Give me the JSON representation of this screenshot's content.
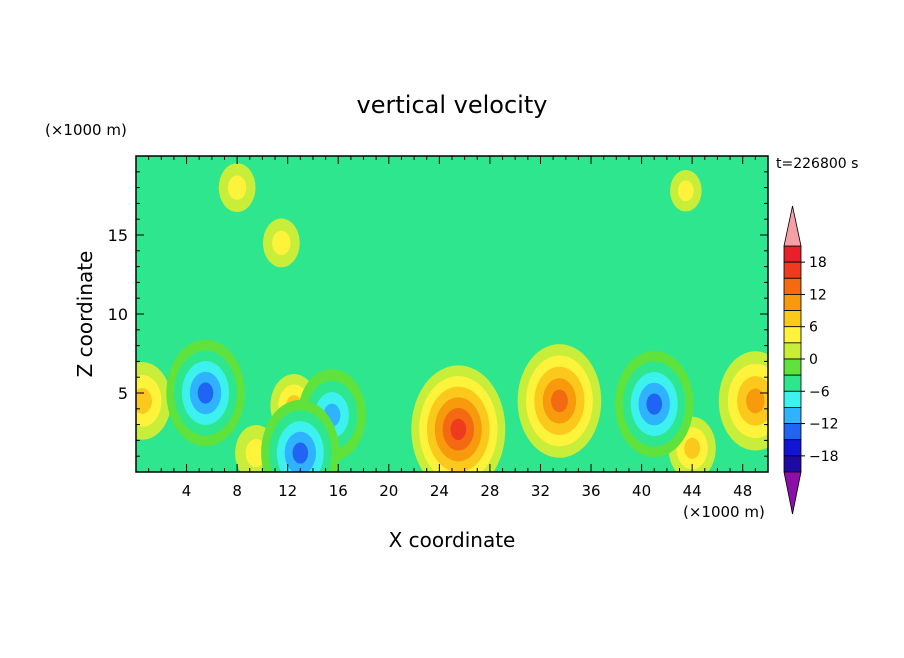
{
  "chart_data": {
    "type": "heatmap",
    "title": "vertical velocity",
    "time_label": "t=226800 s",
    "xlabel": "X coordinate",
    "ylabel": "Z coordinate",
    "x_unit": "(×1000 m)",
    "y_unit": "(×1000 m)",
    "xlim": [
      0,
      50
    ],
    "ylim": [
      0,
      20
    ],
    "x_ticks": [
      "4",
      "8",
      "12",
      "16",
      "20",
      "24",
      "28",
      "32",
      "36",
      "40",
      "44",
      "48"
    ],
    "y_ticks": [
      "5",
      "10",
      "15"
    ],
    "colorbar": {
      "tick_labels": [
        "18",
        "12",
        "6",
        "0",
        "−6",
        "−12",
        "−18"
      ],
      "levels": [
        18,
        15,
        12,
        9,
        6,
        3,
        0,
        -3,
        -6,
        -9,
        -12,
        -15,
        -18
      ],
      "colors": [
        "#e8202a",
        "#ef3a20",
        "#f46a12",
        "#f79a0c",
        "#fbc81c",
        "#fdf33a",
        "#c8ee3a",
        "#5fe23c",
        "#2ee68e",
        "#3df2ee",
        "#2fb2ff",
        "#1f64f2",
        "#1414d4",
        "#1e0aa0"
      ],
      "over_color": "#f4a0a6",
      "under_color": "#8c0fa8"
    },
    "field_features": [
      {
        "x": 25.5,
        "z": 2.7,
        "value": 15
      },
      {
        "x": 33.5,
        "z": 4.5,
        "value": 13
      },
      {
        "x": 49.0,
        "z": 4.5,
        "value": 11
      },
      {
        "x": 0.5,
        "z": 4.5,
        "value": 8
      },
      {
        "x": 12.5,
        "z": 4.2,
        "value": 6
      },
      {
        "x": 9.5,
        "z": 1.2,
        "value": 5
      },
      {
        "x": 44.0,
        "z": 1.5,
        "value": 6
      },
      {
        "x": 5.5,
        "z": 5.0,
        "value": -12
      },
      {
        "x": 15.5,
        "z": 3.6,
        "value": -10
      },
      {
        "x": 13.0,
        "z": 1.2,
        "value": -12
      },
      {
        "x": 41.0,
        "z": 4.3,
        "value": -12
      },
      {
        "x": 8.0,
        "z": 18.0,
        "value": 4
      },
      {
        "x": 11.5,
        "z": 14.5,
        "value": 4
      },
      {
        "x": 43.5,
        "z": 17.8,
        "value": 3
      }
    ]
  }
}
